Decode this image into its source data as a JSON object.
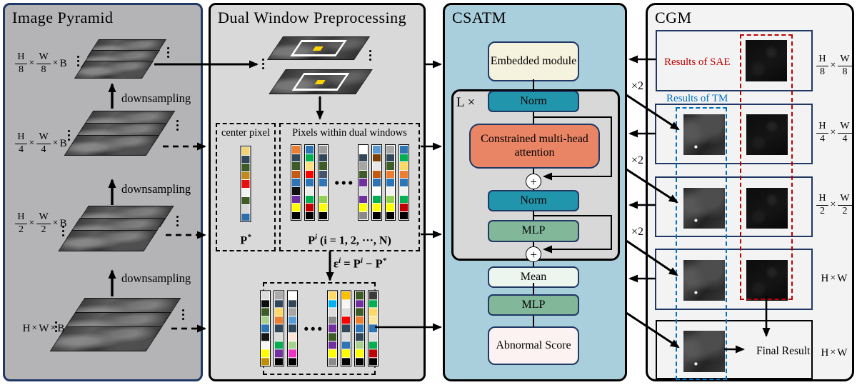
{
  "panels": {
    "image_pyramid": {
      "title": "Image Pyramid",
      "downsampling_label": "downsampling",
      "levels": [
        {
          "dims": [
            [
              "H",
              "8"
            ],
            [
              "W",
              "8"
            ],
            [
              "B",
              null
            ]
          ]
        },
        {
          "dims": [
            [
              "H",
              "4"
            ],
            [
              "W",
              "4"
            ],
            [
              "B",
              null
            ]
          ]
        },
        {
          "dims": [
            [
              "H",
              "2"
            ],
            [
              "W",
              "2"
            ],
            [
              "B",
              null
            ]
          ]
        },
        {
          "dims": [
            [
              "H",
              null
            ],
            [
              "W",
              null
            ],
            [
              "B",
              null
            ]
          ]
        }
      ]
    },
    "dual_window": {
      "title": "Dual Window Preprocessing",
      "center_pixel_label": "center pixel",
      "center_pixel_symbol": "P^{*}",
      "pixels_label": "Pixels within dual windows",
      "pixels_symbol": "P^{i} (i = 1, 2, ···, N)",
      "residual_formula": "ε^{i} = P^{i} − P^{*}",
      "center_pixel_colors": [
        [
          "#F2D478",
          "#33475B",
          "#3E5C28",
          "#C28A1E",
          "#E8100C",
          "#F2F2F2",
          "#3E5C28",
          "#D8D8D8",
          "#2E6DA8"
        ]
      ],
      "window_pixel_columns_left": [
        [
          "#ED7D31",
          "#33475B",
          "#3E5C28",
          "#C55A11",
          "#2E75B6",
          "#111111",
          "#7030A0",
          "#FFFF00",
          "#000000"
        ],
        [
          "#2E75B6",
          "#00B050",
          "#FFE080",
          "#FF0000",
          "#2E75B6",
          "#EDEDED",
          "#00B050",
          "#C00000",
          "#000000"
        ],
        [
          "#9B9B9B",
          "#33475B",
          "#3E5C28",
          "#44546A",
          "#2E75B6",
          "#EDEDED",
          "#92D050",
          "#FFFF00",
          "#000000"
        ]
      ],
      "window_pixel_columns_right": [
        [
          "#FFFFFF",
          "#33475B",
          "#A6A6A6",
          "#3E5C28",
          "#7030A0",
          "#DDDDDD",
          "#7030A0",
          "#FFFF00",
          "#8A8A8A"
        ],
        [
          "#5B9BD5",
          "#7B3F00",
          "#E8E8E8",
          "#C55A11",
          "#2E75B6",
          "#FFFFFF",
          "#00B050",
          "#FFFF00",
          "#000000"
        ],
        [
          "#A6A6A6",
          "#33475B",
          "#3E5C28",
          "#ED7D31",
          "#2E75B6",
          "#F2F2F2",
          "#92D050",
          "#FFFF00",
          "#000000"
        ],
        [
          "#2E75B6",
          "#00B050",
          "#FFD966",
          "#ED7D31",
          "#2E75B6",
          "#F2F2F2",
          "#00B050",
          "#C00000",
          "#000000"
        ]
      ],
      "residual_columns_left": [
        [
          "#DCDCDC",
          "#0D0D0D",
          "#3E5C28",
          "#A9D18E",
          "#2E75B6",
          "#141414",
          "#F5F5F5",
          "#FFFF00",
          "#BF8F00"
        ],
        [
          "#ABABAB",
          "#33475B",
          "#FFD966",
          "#ED7D31",
          "#33475B",
          "#DCDCDC",
          "#00B050",
          "#7030A0",
          "#000000"
        ],
        [
          "#FFFFFF",
          "#33475B",
          "#A6A6A6",
          "#5B9BD5",
          "#33475B",
          "#FBE5D6",
          "#A9D18E",
          "#E935C1",
          "#000000"
        ]
      ],
      "residual_columns_right": [
        [
          "#FFD966",
          "#00B0F0",
          "#DCDCDC",
          "#8A8A8A",
          "#7030A0",
          "#3E5C28",
          "#7030A0",
          "#FFFF00",
          "#8A8A8A"
        ],
        [
          "#FFC000",
          "#F5F5F5",
          "#DCDCDC",
          "#FF0000",
          "#33475B",
          "#DCDCDC",
          "#2E75B6",
          "#FFFF00",
          "#000000"
        ],
        [
          "#3E5C28",
          "#7030A0",
          "#3E5C28",
          "#ED7D31",
          "#2E75B6",
          "#33475B",
          "#A9D18E",
          "#FFFF00",
          "#000000"
        ],
        [
          "#3B3B3B",
          "#00B050",
          "#FFD966",
          "#FFE699",
          "#2E75B6",
          "#DCDCDC",
          "#00B050",
          "#C00000",
          "#000000"
        ]
      ]
    },
    "csatm": {
      "title": "CSATM",
      "embedded_module": "Embedded module",
      "loop_label": "L ×",
      "norm1": "Norm",
      "attention": "Constrained multi-head attention",
      "norm2": "Norm",
      "mlp_inner": "MLP",
      "mean": "Mean",
      "mlp_outer": "MLP",
      "abnormal_score": "Abnormal Score",
      "plus_symbol": "+"
    },
    "cgm": {
      "title": "CGM",
      "sae_label": "Results of SAE",
      "tm_label": "Results of TM",
      "upsample_label": "×2",
      "final_result_label": "Final Result",
      "rows": [
        {
          "dims": [
            [
              "H",
              "8"
            ],
            [
              "W",
              "8"
            ]
          ]
        },
        {
          "dims": [
            [
              "H",
              "4"
            ],
            [
              "W",
              "4"
            ]
          ]
        },
        {
          "dims": [
            [
              "H",
              "2"
            ],
            [
              "W",
              "2"
            ]
          ]
        },
        {
          "dims": [
            [
              "H",
              null
            ],
            [
              "W",
              null
            ]
          ]
        },
        {
          "dims": [
            [
              "H",
              null
            ],
            [
              "W",
              null
            ]
          ]
        }
      ]
    }
  },
  "colors": {
    "pyramid_border_navy": "#1f3864",
    "csatm_panel_blue": "#aacfdc",
    "norm_teal": "#2095ab",
    "attention_salmon": "#e98565",
    "mlp_green": "#83b79a",
    "embedded_cream": "#f5f2de",
    "abnormal_pink": "#fcf2f2",
    "sae_red": "#c00000",
    "tm_blue": "#0070c0",
    "center_pixel_yellow": "#ffd400"
  }
}
